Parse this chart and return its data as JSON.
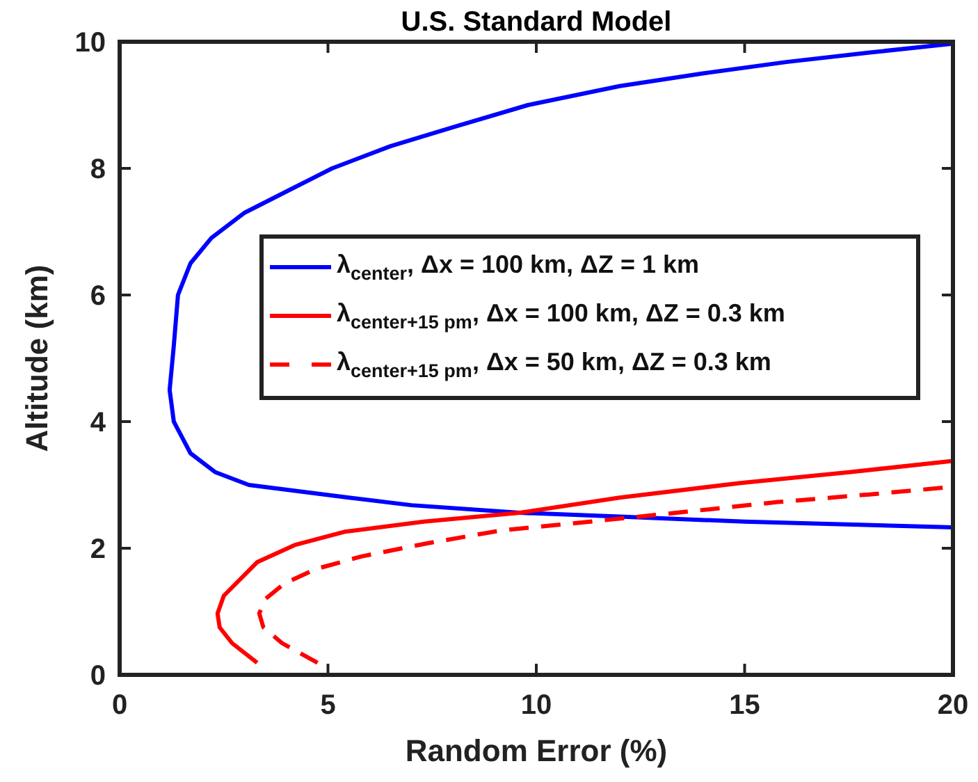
{
  "chart_data": {
    "type": "line",
    "title": "U.S. Standard Model",
    "xlabel": "Random Error (%)",
    "ylabel": "Altitude (km)",
    "xlim": [
      0,
      20
    ],
    "ylim": [
      0,
      10
    ],
    "xticks": [
      0,
      5,
      10,
      15,
      20
    ],
    "yticks": [
      0,
      2,
      4,
      6,
      8,
      10
    ],
    "grid": false,
    "legend": "right",
    "series": [
      {
        "name": "λ$_{center}$, Δx = 100 km, ΔZ = 1 km",
        "color": "#0000ff",
        "line_style": "solid",
        "x": [
          20,
          15,
          12,
          9.6,
          7,
          5.5,
          3.1,
          2.3,
          1.7,
          1.3,
          1.2,
          1.3,
          1.4,
          1.7,
          2.2,
          3,
          4.2,
          5.1,
          6.5,
          8,
          9.8,
          12,
          14,
          16,
          18,
          20
        ],
        "values": [
          2.33,
          2.42,
          2.5,
          2.56,
          2.68,
          2.8,
          3.0,
          3.2,
          3.5,
          4.0,
          4.5,
          5.2,
          6.0,
          6.5,
          6.9,
          7.3,
          7.7,
          8.0,
          8.35,
          8.65,
          9.0,
          9.3,
          9.5,
          9.68,
          9.83,
          9.97
        ]
      },
      {
        "name": "λ$_{center+15 pm}$, Δx = 100 km, ΔZ = 0.3 km",
        "color": "#ff0000",
        "line_style": "solid",
        "x": [
          3.3,
          2.7,
          2.4,
          2.35,
          2.5,
          3.3,
          4.2,
          5.4,
          7.3,
          9.6,
          12,
          14.9,
          17.5,
          20
        ],
        "values": [
          0.19,
          0.5,
          0.75,
          0.97,
          1.25,
          1.78,
          2.05,
          2.26,
          2.42,
          2.56,
          2.8,
          3.03,
          3.2,
          3.38
        ]
      },
      {
        "name": "λ$_{center+15 pm}$, Δx = 50 km, ΔZ = 0.3 km",
        "color": "#ff0000",
        "line_style": "dashed",
        "x": [
          4.75,
          3.9,
          3.45,
          3.35,
          3.5,
          3.95,
          4.7,
          5.8,
          7.4,
          9.15,
          12.35,
          15.8,
          18,
          20
        ],
        "values": [
          0.19,
          0.5,
          0.75,
          0.97,
          1.2,
          1.44,
          1.67,
          1.87,
          2.08,
          2.28,
          2.49,
          2.73,
          2.85,
          2.97
        ]
      }
    ]
  }
}
